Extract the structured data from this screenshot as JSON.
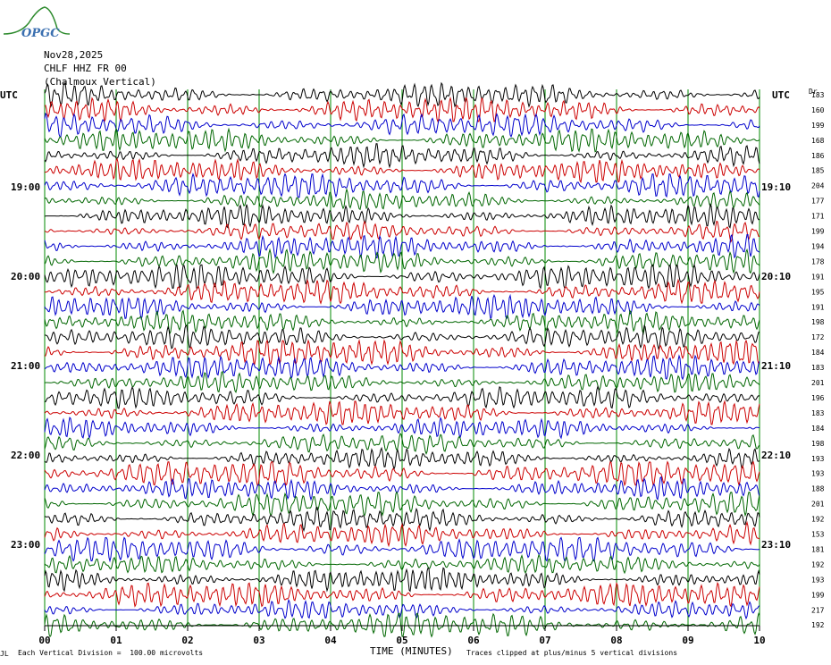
{
  "logo": {
    "text": "OPGC"
  },
  "header": {
    "date": "Nov28,2025",
    "station": "CHLF HHZ FR 00",
    "location": "(Chalmoux Vertical)"
  },
  "left_axis_title": "UTC",
  "right_axis_title": "UTC",
  "right_col_title": "Dr",
  "footer": {
    "scale": "Each Vertical Division =  100.00 microvolts",
    "clip": "Traces clipped at plus/minus 5 vertical divisions",
    "corner_mark": "JL"
  },
  "colors": {
    "trace_cycle": [
      "#000000",
      "#cc0000",
      "#0000cc",
      "#006600"
    ],
    "grid": "#008800"
  },
  "chart_data": {
    "type": "line",
    "subtype": "helicorder",
    "title": "CHLF HHZ FR 00 (Chalmoux Vertical)",
    "xlabel": "TIME (MINUTES)",
    "x_ticks": [
      "00",
      "01",
      "02",
      "03",
      "04",
      "05",
      "06",
      "07",
      "08",
      "09",
      "10"
    ],
    "xlim": [
      0,
      10
    ],
    "minutes_per_line": 10,
    "trace_count": 36,
    "left_time_labels": [
      "19:00",
      "20:00",
      "21:00",
      "22:00",
      "23:00"
    ],
    "right_time_labels": [
      "19:10",
      "20:10",
      "21:10",
      "22:10",
      "23:10"
    ],
    "trace_dr_values": [
      "183",
      "160",
      "199",
      "168",
      "186",
      "185",
      "204",
      "177",
      "171",
      "199",
      "194",
      "178",
      "191",
      "195",
      "191",
      "198",
      "172",
      "184",
      "183",
      "201",
      "196",
      "183",
      "184",
      "198",
      "193",
      "193",
      "188",
      "201",
      "192",
      "153",
      "181",
      "192",
      "193",
      "199",
      "217",
      "192"
    ]
  }
}
